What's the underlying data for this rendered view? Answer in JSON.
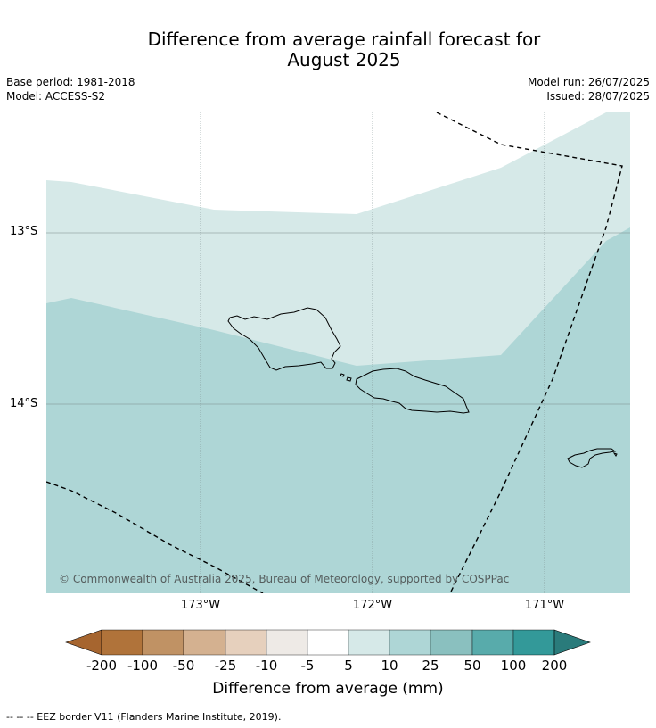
{
  "title_line1": "Difference from average rainfall forecast for",
  "title_line2": "August 2025",
  "base_period": "Base period: 1981-2018",
  "model": "Model: ACCESS-S2",
  "model_run": "Model run: 26/07/2025",
  "issued": "Issued: 28/07/2025",
  "lat_labels": [
    "13°S",
    "14°S"
  ],
  "lon_labels": [
    "173°W",
    "172°W",
    "171°W"
  ],
  "copyright": "© Commonwealth of Australia 2025, Bureau of Meteorology, supported by COSPPac",
  "colorbar": {
    "ticks": [
      "-200",
      "-100",
      "-50",
      "-25",
      "-10",
      "-5",
      "5",
      "10",
      "25",
      "50",
      "100",
      "200"
    ],
    "colors": [
      "#a6652f",
      "#b0733a",
      "#c09264",
      "#d4b190",
      "#e6d0bd",
      "#eeeae6",
      "#ffffff",
      "#d6e9e8",
      "#aed6d6",
      "#8ac0bf",
      "#58abab",
      "#339999",
      "#2a7b7b"
    ],
    "label": "Difference from average (mm)"
  },
  "footnote": "--  --  -- EEZ border V11 (Flanders Marine Institute, 2019).",
  "map_colors": {
    "light": "#d6e9e8",
    "medium": "#aed6d6"
  }
}
